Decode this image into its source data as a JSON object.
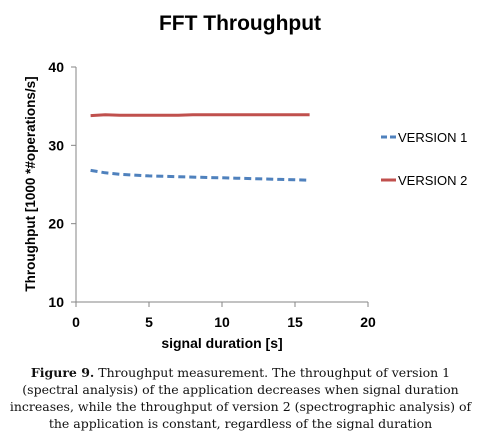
{
  "chart_data": {
    "type": "line",
    "title": "FFT Throughput",
    "xlabel": "signal duration [s]",
    "ylabel": "Throughput [1000 *#operations/s]",
    "xlim": [
      0,
      20
    ],
    "ylim": [
      10,
      40
    ],
    "xticks": [
      0,
      5,
      10,
      15,
      20
    ],
    "yticks": [
      10,
      20,
      30,
      40
    ],
    "grid": false,
    "legend_position": "right",
    "series": [
      {
        "name": "VERSION 1",
        "color": "#4F81BD",
        "style": "dashed",
        "x": [
          1,
          2,
          3,
          4,
          5,
          6,
          7,
          8,
          9,
          10,
          11,
          12,
          13,
          14,
          15,
          16
        ],
        "y": [
          26.8,
          26.5,
          26.3,
          26.2,
          26.1,
          26.05,
          26.0,
          25.95,
          25.9,
          25.85,
          25.8,
          25.75,
          25.7,
          25.65,
          25.6,
          25.55
        ]
      },
      {
        "name": "VERSION 2",
        "color": "#C0504D",
        "style": "solid",
        "x": [
          1,
          2,
          3,
          4,
          5,
          6,
          7,
          8,
          9,
          10,
          11,
          12,
          13,
          14,
          15,
          16
        ],
        "y": [
          33.8,
          33.9,
          33.85,
          33.85,
          33.85,
          33.85,
          33.85,
          33.9,
          33.9,
          33.9,
          33.9,
          33.9,
          33.9,
          33.9,
          33.9,
          33.9
        ]
      }
    ]
  },
  "caption": {
    "label": "Figure 9.",
    "text": " Throughput measurement. The throughput of version 1 (spectral analysis) of the application decreases when signal duration increases, while the throughput of version 2 (spectrographic analysis) of the application is constant, regardless of the signal duration"
  }
}
